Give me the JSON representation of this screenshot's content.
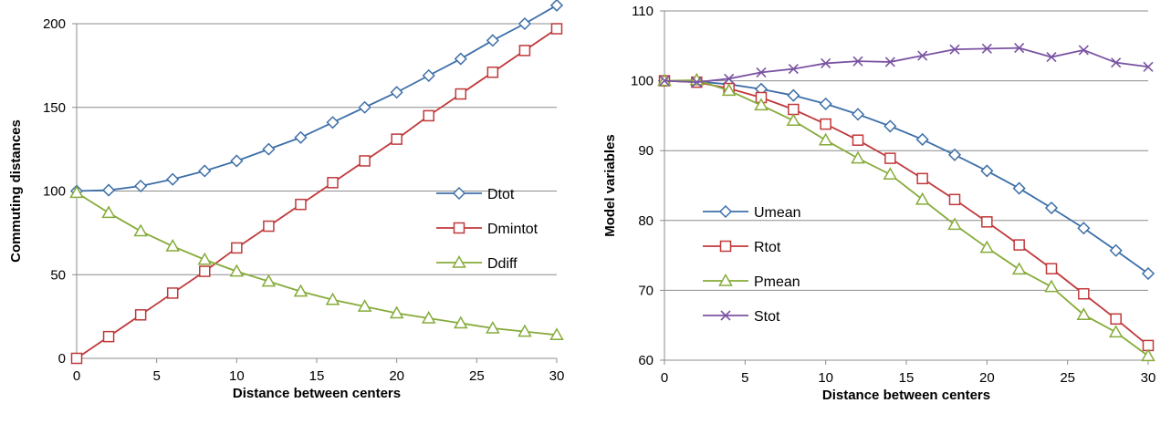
{
  "chart_data": [
    {
      "type": "line",
      "xlabel": "Distance between centers",
      "ylabel": "Commuting distances",
      "xlim": [
        0,
        30
      ],
      "ylim": [
        0,
        200
      ],
      "xticks": [
        "0",
        "5",
        "10",
        "15",
        "20",
        "25",
        "30"
      ],
      "yticks": [
        "0",
        "50",
        "100",
        "150",
        "200"
      ],
      "grid": "horizontal",
      "legend_position": "right",
      "x": [
        0,
        2,
        4,
        6,
        8,
        10,
        12,
        14,
        16,
        18,
        20,
        22,
        24,
        26,
        28,
        30
      ],
      "series": [
        {
          "name": "Dtot",
          "marker": "diamond",
          "color": "#3d6fa8",
          "values": [
            100,
            100.5,
            103,
            107,
            112,
            118,
            125,
            132,
            141,
            150,
            159,
            169,
            179,
            190,
            200,
            211
          ]
        },
        {
          "name": "Dmintot",
          "marker": "square",
          "color": "#c0393b",
          "values": [
            0,
            13,
            26,
            39,
            52,
            66,
            79,
            92,
            105,
            118,
            131,
            145,
            158,
            171,
            184,
            197
          ]
        },
        {
          "name": "Ddiff",
          "marker": "triangle",
          "color": "#86ab3a",
          "values": [
            99,
            87,
            76,
            67,
            59,
            52,
            46,
            40,
            35,
            31,
            27,
            24,
            21,
            18,
            16,
            14
          ]
        }
      ]
    },
    {
      "type": "line",
      "xlabel": "Distance between centers",
      "ylabel": "Model variables",
      "xlim": [
        0,
        30
      ],
      "ylim": [
        60,
        110
      ],
      "xticks": [
        "0",
        "5",
        "10",
        "15",
        "20",
        "25",
        "30"
      ],
      "yticks": [
        "60",
        "70",
        "80",
        "90",
        "100",
        "110"
      ],
      "grid": "horizontal",
      "legend_position": "left",
      "x": [
        0,
        2,
        4,
        6,
        8,
        10,
        12,
        14,
        16,
        18,
        20,
        22,
        24,
        26,
        28,
        30
      ],
      "series": [
        {
          "name": "Umean",
          "marker": "diamond",
          "color": "#3d6fa8",
          "values": [
            100,
            99.9,
            99.5,
            98.8,
            97.9,
            96.7,
            95.2,
            93.5,
            91.6,
            89.4,
            87.1,
            84.6,
            81.8,
            78.9,
            75.7,
            72.4
          ]
        },
        {
          "name": "Rtot",
          "marker": "square",
          "color": "#c0393b",
          "values": [
            100,
            99.8,
            98.9,
            97.6,
            95.9,
            93.8,
            91.5,
            88.9,
            86.0,
            83.0,
            79.8,
            76.5,
            73.1,
            69.5,
            65.9,
            62.1
          ]
        },
        {
          "name": "Pmean",
          "marker": "triangle",
          "color": "#86ab3a",
          "values": [
            100,
            100.1,
            98.6,
            96.5,
            94.3,
            91.5,
            88.9,
            86.6,
            83.0,
            79.4,
            76.1,
            73.0,
            70.5,
            66.5,
            64.0,
            60.6
          ]
        },
        {
          "name": "Stot",
          "marker": "x",
          "color": "#7a52a2",
          "values": [
            100,
            99.8,
            100.3,
            101.2,
            101.7,
            102.5,
            102.8,
            102.7,
            103.6,
            104.5,
            104.6,
            104.7,
            103.4,
            104.4,
            102.6,
            102.0
          ]
        }
      ]
    }
  ]
}
